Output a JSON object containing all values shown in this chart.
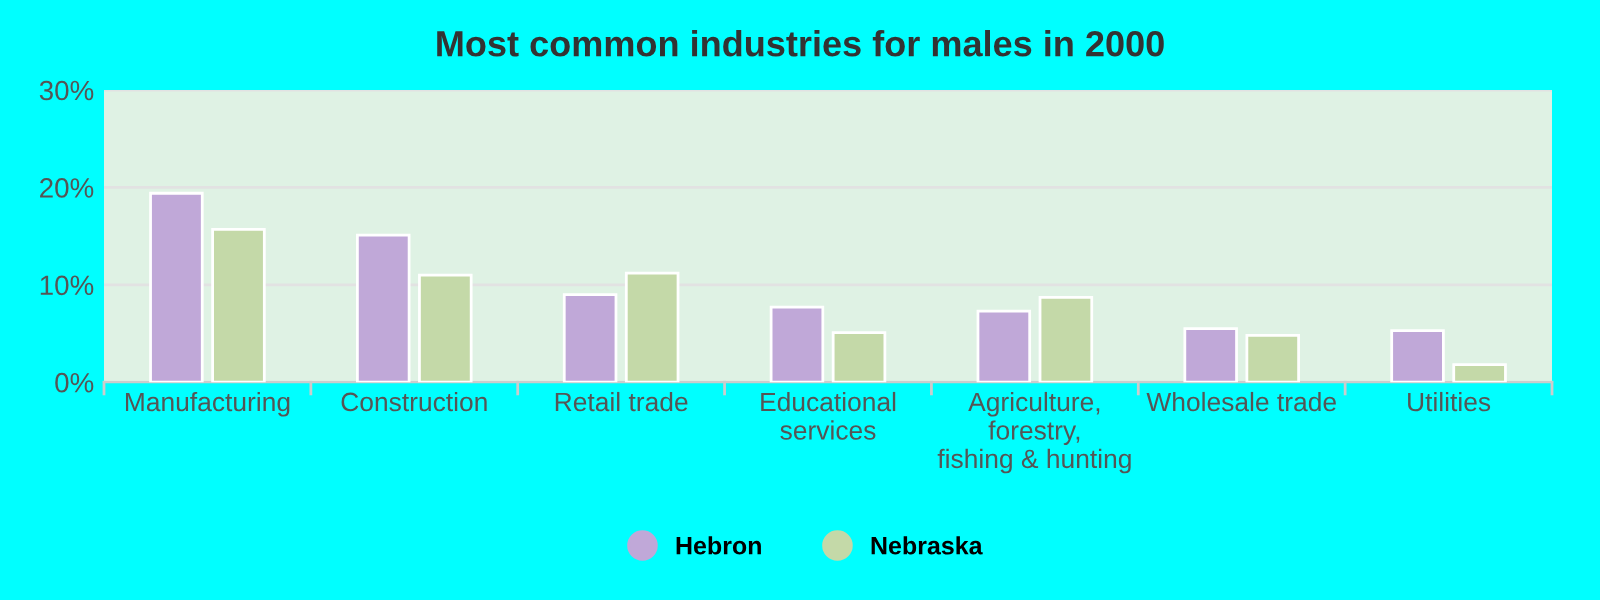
{
  "chart_data": {
    "type": "bar",
    "title": "Most common industries for males in 2000",
    "categories": [
      "Manufacturing",
      "Construction",
      "Retail trade",
      "Educational\nservices",
      "Agriculture,\nforestry,\nfishing & hunting",
      "Wholesale trade",
      "Utilities"
    ],
    "series": [
      {
        "name": "Hebron",
        "color": "#c0a8d8",
        "values": [
          19.4,
          15.1,
          9.0,
          7.7,
          7.3,
          5.5,
          5.3
        ]
      },
      {
        "name": "Nebraska",
        "color": "#c4d9a8",
        "values": [
          15.7,
          11.0,
          11.2,
          5.1,
          8.7,
          4.8,
          1.8
        ]
      }
    ],
    "ylim": [
      0,
      30
    ],
    "yticks": [
      {
        "value": 0,
        "label": "0%"
      },
      {
        "value": 10,
        "label": "10%"
      },
      {
        "value": 20,
        "label": "20%"
      },
      {
        "value": 30,
        "label": "30%"
      }
    ],
    "grid": "y",
    "legend": "bottom"
  }
}
